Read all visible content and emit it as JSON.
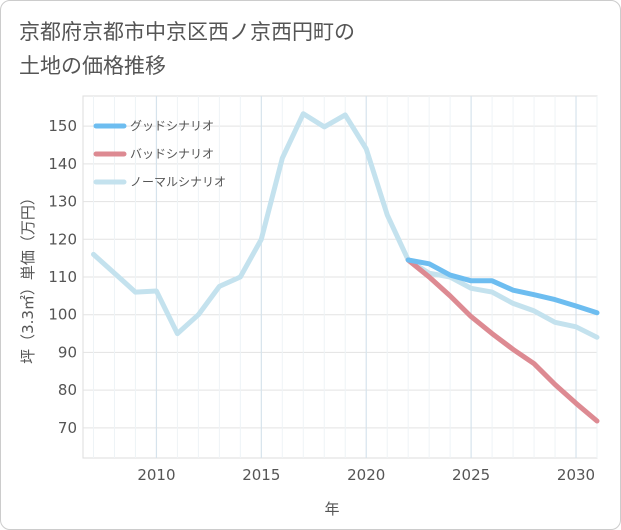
{
  "title_line1": "京都府京都市中京区西ノ京西円町の",
  "title_line2": "土地の価格推移",
  "chart_data": {
    "type": "line",
    "title": "京都府京都市中京区西ノ京西円町の土地の価格推移",
    "xlabel": "年",
    "ylabel": "坪（3.3㎡）単価（万円）",
    "xlim": [
      2006.5,
      2031
    ],
    "ylim": [
      62,
      158
    ],
    "x_ticks": [
      2010,
      2015,
      2020,
      2025,
      2030
    ],
    "y_ticks": [
      70,
      80,
      90,
      100,
      110,
      120,
      130,
      140,
      150
    ],
    "grid": true,
    "legend_position": "top-left",
    "series": [
      {
        "name": "グッドシナリオ",
        "color": "#6dbdf0",
        "x": [
          2022,
          2023,
          2024,
          2025,
          2026,
          2027,
          2028,
          2029,
          2030,
          2031
        ],
        "values": [
          114.5,
          113.5,
          110.5,
          109,
          109,
          106.5,
          105.3,
          104,
          102.3,
          100.5
        ]
      },
      {
        "name": "バッドシナリオ",
        "color": "#dd8a92",
        "x": [
          2022,
          2023,
          2024,
          2025,
          2026,
          2027,
          2028,
          2029,
          2030,
          2031
        ],
        "values": [
          114.5,
          110,
          105,
          99.5,
          95,
          90.8,
          87,
          81.5,
          76.5,
          71.8
        ]
      },
      {
        "name": "ノーマルシナリオ",
        "color": "#c4e2ee",
        "x": [
          2007,
          2008,
          2009,
          2010,
          2011,
          2012,
          2013,
          2014,
          2015,
          2016,
          2017,
          2018,
          2019,
          2020,
          2021,
          2022,
          2023,
          2024,
          2025,
          2026,
          2027,
          2028,
          2029,
          2030,
          2031
        ],
        "values": [
          116,
          111,
          106,
          106.3,
          95,
          100,
          107.5,
          110,
          120,
          141.5,
          153.3,
          149.8,
          153,
          144,
          126.5,
          114.5,
          111,
          110,
          107,
          106,
          103,
          101,
          98,
          96.8,
          94
        ]
      }
    ]
  }
}
